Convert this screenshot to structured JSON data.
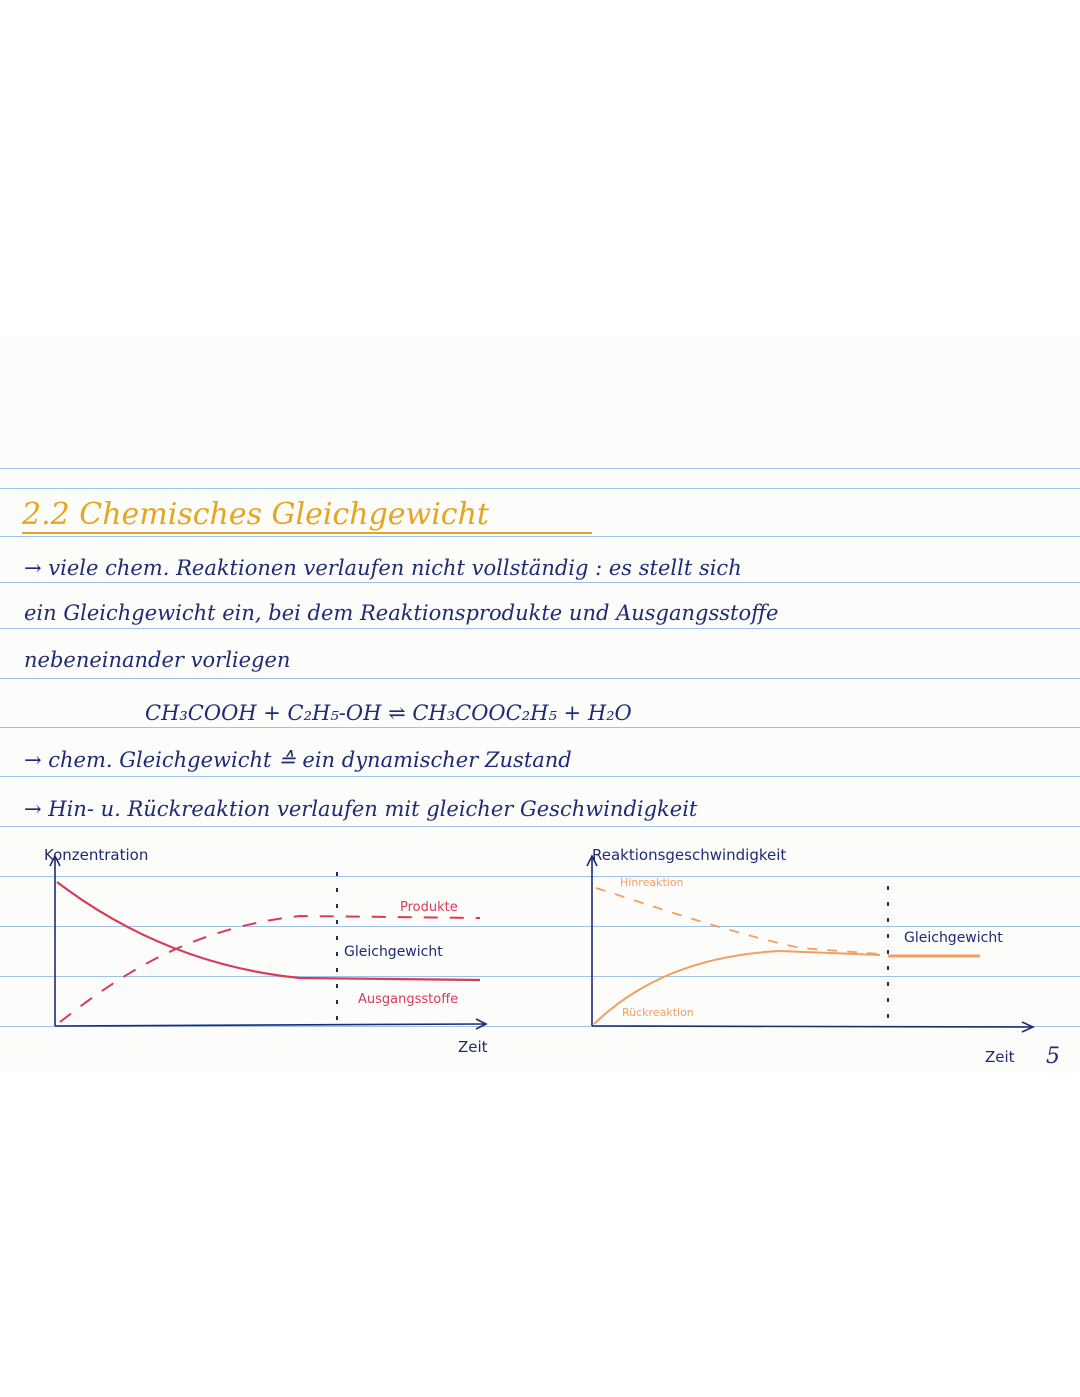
{
  "heading": {
    "number": "2.2",
    "title": "Chemisches Gleichgewicht"
  },
  "text": {
    "line1": "→ viele chem. Reaktionen verlaufen nicht vollständig : es stellt sich",
    "line2": "ein Gleichgewicht ein, bei dem Reaktionsprodukte und Ausgangsstoffe",
    "line3": "nebeneinander vorliegen",
    "equation": "CH₃COOH   +  C₂H₅-OH ⇌ CH₃COOC₂H₅  +  H₂O",
    "line4": "→ chem. Gleichgewicht ≙ ein dynamischer Zustand",
    "line5": "→ Hin- u. Rückreaktion verlaufen mit gleicher Geschwindigkeit"
  },
  "chart_data": [
    {
      "type": "line",
      "ylabel": "Konzentration",
      "xlabel": "Zeit",
      "series": [
        {
          "name": "Produkte",
          "style": "dashed",
          "color": "#d83a5c"
        },
        {
          "name": "Ausgangsstoffe",
          "style": "solid",
          "color": "#d83a5c"
        }
      ],
      "annotations": [
        "Gleichgewicht"
      ]
    },
    {
      "type": "line",
      "ylabel": "Reaktionsgeschwindigkeit",
      "xlabel": "Zeit",
      "series": [
        {
          "name": "Hinreaktion",
          "style": "dashed",
          "color": "#f0a060"
        },
        {
          "name": "Rückreaktion",
          "style": "solid",
          "color": "#f0a060"
        }
      ],
      "annotations": [
        "Gleichgewicht"
      ]
    }
  ],
  "page_number": "5",
  "colors": {
    "ink": "#1e2b73",
    "heading": "#e6a51e",
    "pink": "#d83a5c",
    "orange": "#f0a060",
    "rules": "#9fc3e6"
  }
}
